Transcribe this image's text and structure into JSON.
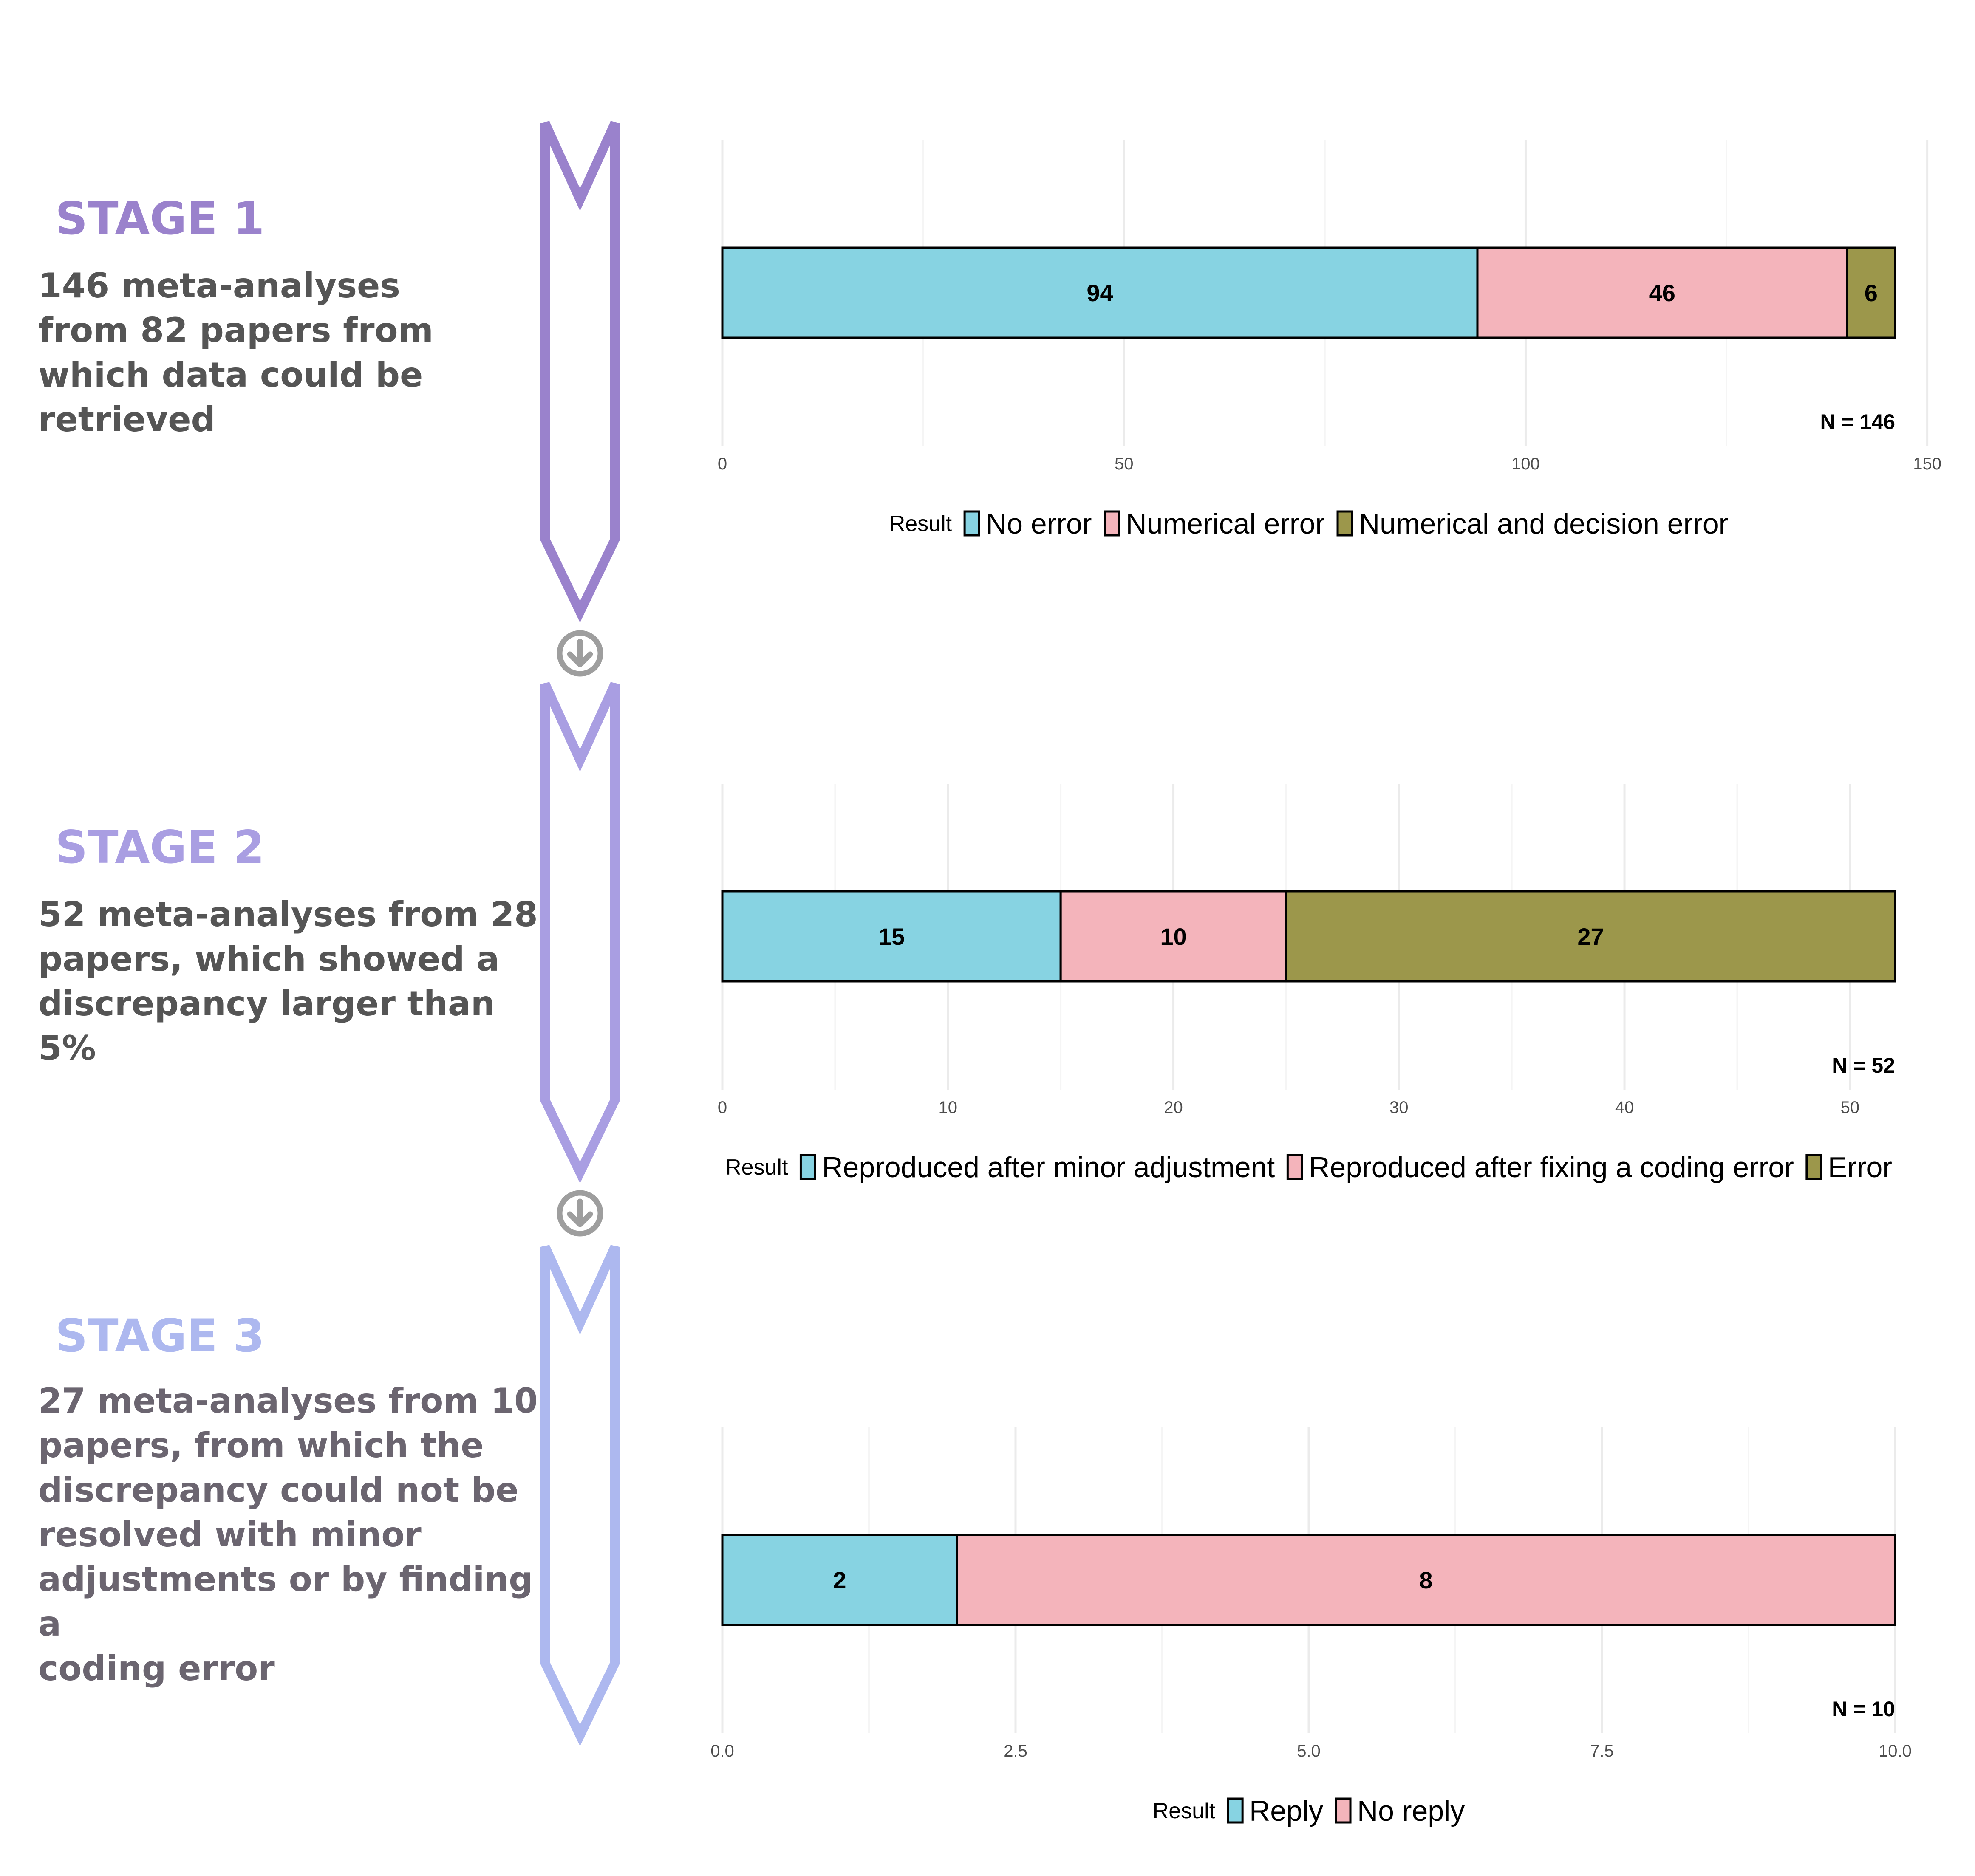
{
  "colors": {
    "series_1": "#87D3E2",
    "series_2": "#F4B4BB",
    "series_3": "#9C974B",
    "stage_1": "#9A82CC",
    "stage_2": "#A99EE2",
    "stage_3": "#ADB8EF",
    "down_arrow": "#9E9E9E",
    "desc_text": "#555555",
    "desc_text_stage_3": "#6B6570"
  },
  "connector_icon": "circle-down-arrow-icon",
  "stages": [
    {
      "heading": "STAGE 1",
      "description": "146 meta-analyses\nfrom 82 papers from\nwhich data could be\nretrieved"
    },
    {
      "heading": "STAGE 2",
      "description": "52 meta-analyses from 28\npapers, which showed a\ndiscrepancy larger than 5%"
    },
    {
      "heading": "STAGE 3",
      "description": "27 meta-analyses from 10\npapers, from which the\ndiscrepancy could not be\nresolved with minor\nadjustments or by finding a\ncoding error"
    }
  ],
  "chart_data": [
    {
      "type": "bar",
      "orientation": "horizontal",
      "stacked": true,
      "xlim": [
        0,
        150
      ],
      "x_ticks": [
        "0",
        "50",
        "100",
        "150"
      ],
      "series": [
        {
          "name": "No error",
          "values": [
            94
          ],
          "label": "94"
        },
        {
          "name": "Numerical error",
          "values": [
            46
          ],
          "label": "46"
        },
        {
          "name": "Numerical and decision error",
          "values": [
            6
          ],
          "label": "6"
        }
      ],
      "annotation": "N = 146",
      "legend_title": "Result",
      "legend_position": "bottom",
      "grid": true
    },
    {
      "type": "bar",
      "orientation": "horizontal",
      "stacked": true,
      "xlim": [
        0,
        52
      ],
      "x_ticks": [
        "0",
        "10",
        "20",
        "30",
        "40",
        "50"
      ],
      "series": [
        {
          "name": "Reproduced after minor adjustment",
          "values": [
            15
          ],
          "label": "15"
        },
        {
          "name": "Reproduced after fixing a coding error",
          "values": [
            10
          ],
          "label": "10"
        },
        {
          "name": "Error",
          "values": [
            27
          ],
          "label": "27"
        }
      ],
      "annotation": "N = 52",
      "legend_title": "Result",
      "legend_position": "bottom",
      "grid": true
    },
    {
      "type": "bar",
      "orientation": "horizontal",
      "stacked": true,
      "xlim": [
        0,
        10
      ],
      "x_ticks": [
        "0.0",
        "2.5",
        "5.0",
        "7.5",
        "10.0"
      ],
      "series": [
        {
          "name": "Reply",
          "values": [
            2
          ],
          "label": "2"
        },
        {
          "name": "No reply",
          "values": [
            8
          ],
          "label": "8"
        }
      ],
      "annotation": "N = 10",
      "legend_title": "Result",
      "legend_position": "bottom",
      "grid": true
    }
  ]
}
